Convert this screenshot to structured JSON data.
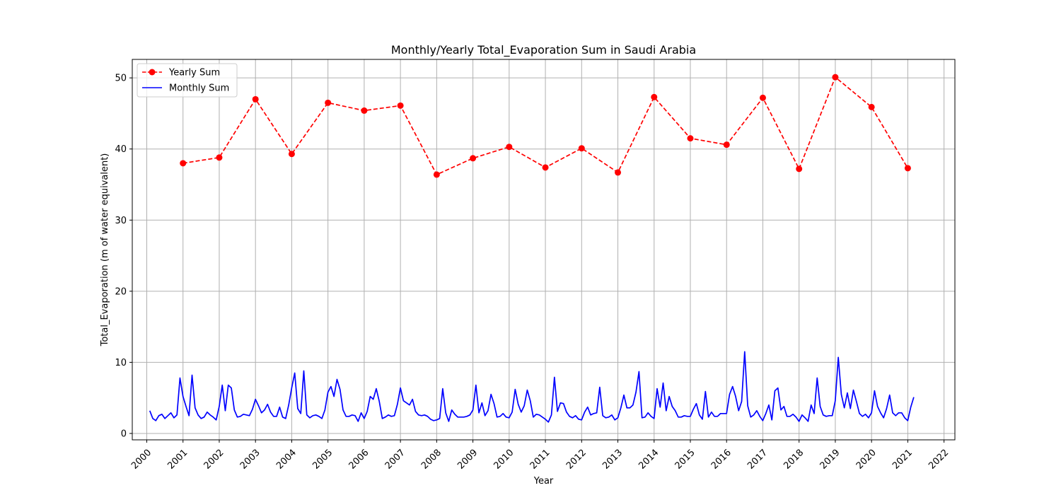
{
  "chart_data": {
    "type": "line",
    "title": "Monthly/Yearly Total_Evaporation Sum in Saudi Arabia",
    "xlabel": "Year",
    "ylabel": "Total_Evaporation (m of water equivalent)",
    "xlim": [
      1999.6,
      2022.3
    ],
    "ylim": [
      -0.9,
      52.6
    ],
    "x_ticks": [
      2000,
      2001,
      2002,
      2003,
      2004,
      2005,
      2006,
      2007,
      2008,
      2009,
      2010,
      2011,
      2012,
      2013,
      2014,
      2015,
      2016,
      2017,
      2018,
      2019,
      2020,
      2021,
      2022
    ],
    "y_ticks": [
      0,
      10,
      20,
      30,
      40,
      50
    ],
    "grid": true,
    "legend_position": "top-left",
    "legend": [
      "Yearly Sum",
      "Monthly Sum"
    ],
    "series": [
      {
        "name": "Yearly Sum",
        "style": "dashed-marker",
        "color": "#ff0000",
        "x": [
          2001,
          2002,
          2003,
          2004,
          2005,
          2006,
          2007,
          2008,
          2009,
          2010,
          2011,
          2012,
          2013,
          2014,
          2015,
          2016,
          2017,
          2018,
          2019,
          2020,
          2021
        ],
        "y": [
          38.0,
          38.8,
          47.0,
          39.3,
          46.5,
          45.4,
          46.1,
          36.4,
          38.7,
          40.3,
          37.4,
          40.1,
          36.7,
          47.3,
          41.5,
          40.6,
          47.2,
          37.2,
          50.1,
          45.9,
          37.3
        ]
      },
      {
        "name": "Monthly Sum",
        "style": "solid",
        "color": "#0000ff",
        "x_start": 2000.083,
        "x_step": 0.08333,
        "y": [
          3.2,
          2.1,
          1.8,
          2.5,
          2.7,
          2.1,
          2.5,
          2.9,
          2.2,
          2.6,
          7.8,
          5.2,
          3.8,
          2.5,
          8.2,
          3.6,
          2.6,
          2.1,
          2.3,
          3.0,
          2.6,
          2.3,
          1.9,
          3.8,
          6.8,
          3.2,
          6.8,
          6.4,
          3.3,
          2.3,
          2.4,
          2.7,
          2.6,
          2.5,
          3.4,
          4.8,
          3.9,
          2.9,
          3.3,
          4.1,
          3.0,
          2.4,
          2.4,
          3.7,
          2.3,
          2.1,
          4.0,
          6.4,
          8.5,
          3.5,
          2.8,
          8.8,
          2.6,
          2.2,
          2.5,
          2.6,
          2.4,
          2.1,
          3.3,
          5.8,
          6.6,
          5.2,
          7.6,
          6.2,
          3.3,
          2.4,
          2.4,
          2.6,
          2.5,
          1.7,
          2.9,
          2.1,
          3.1,
          5.2,
          4.8,
          6.3,
          4.5,
          2.1,
          2.3,
          2.6,
          2.4,
          2.5,
          4.1,
          6.4,
          4.6,
          4.3,
          4.0,
          4.8,
          3.1,
          2.6,
          2.5,
          2.6,
          2.4,
          2.0,
          1.8,
          1.9,
          2.1,
          6.3,
          2.9,
          1.7,
          3.3,
          2.7,
          2.3,
          2.3,
          2.3,
          2.4,
          2.6,
          3.3,
          6.8,
          2.9,
          4.3,
          2.5,
          3.2,
          5.5,
          4.2,
          2.3,
          2.4,
          2.8,
          2.3,
          2.2,
          3.0,
          6.2,
          4.1,
          3.0,
          3.9,
          6.1,
          4.6,
          2.3,
          2.7,
          2.6,
          2.3,
          2.0,
          1.6,
          2.6,
          7.9,
          3.1,
          4.3,
          4.2,
          3.0,
          2.4,
          2.2,
          2.5,
          2.0,
          1.9,
          3.0,
          3.7,
          2.6,
          2.8,
          2.9,
          6.5,
          2.5,
          2.2,
          2.3,
          2.6,
          1.9,
          2.2,
          3.6,
          5.4,
          3.6,
          3.6,
          4.0,
          5.8,
          8.7,
          2.2,
          2.3,
          2.9,
          2.4,
          2.1,
          6.3,
          3.7,
          7.1,
          3.2,
          5.2,
          3.8,
          3.2,
          2.3,
          2.3,
          2.5,
          2.4,
          2.4,
          3.4,
          4.2,
          2.6,
          2.0,
          5.9,
          2.3,
          3.0,
          2.4,
          2.4,
          2.8,
          2.8,
          2.8,
          5.5,
          6.6,
          5.2,
          3.2,
          4.5,
          11.5,
          3.9,
          2.3,
          2.6,
          3.2,
          2.4,
          1.8,
          2.8,
          4.0,
          1.9,
          6.0,
          6.4,
          3.3,
          3.8,
          2.4,
          2.4,
          2.7,
          2.3,
          1.7,
          2.6,
          2.2,
          1.7,
          4.0,
          2.8,
          7.8,
          3.8,
          2.6,
          2.4,
          2.5,
          2.5,
          4.6,
          10.7,
          5.5,
          3.6,
          5.7,
          3.5,
          6.1,
          4.5,
          2.8,
          2.4,
          2.7,
          2.2,
          2.9,
          6.0,
          3.8,
          2.9,
          2.2,
          3.5,
          5.4,
          2.9,
          2.5,
          2.9,
          2.9,
          2.2,
          1.8,
          3.7,
          5.1
        ]
      }
    ]
  }
}
